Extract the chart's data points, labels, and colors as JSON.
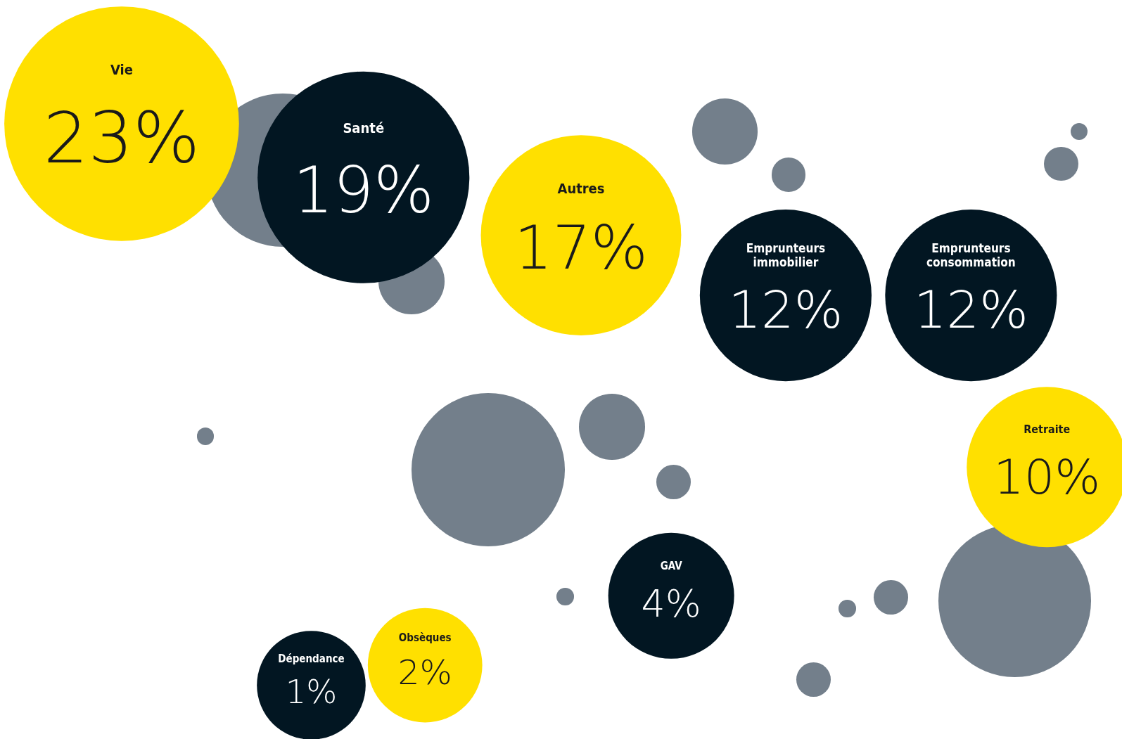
{
  "chart_data": {
    "type": "other",
    "categories": [
      "Vie",
      "Santé",
      "Autres",
      "Emprunteurs immobilier",
      "Emprunteurs consommation",
      "Retraite",
      "GAV",
      "Obsèques",
      "Dépendance"
    ],
    "values": [
      23,
      19,
      17,
      12,
      12,
      10,
      4,
      2,
      1
    ],
    "value_labels": [
      "23%",
      "19%",
      "17%",
      "12%",
      "12%",
      "10%",
      "4%",
      "2%",
      "1%"
    ],
    "colors": [
      "#ffe000",
      "#021622",
      "#ffe000",
      "#021622",
      "#021622",
      "#ffe000",
      "#021622",
      "#ffe000",
      "#021622"
    ]
  }
}
